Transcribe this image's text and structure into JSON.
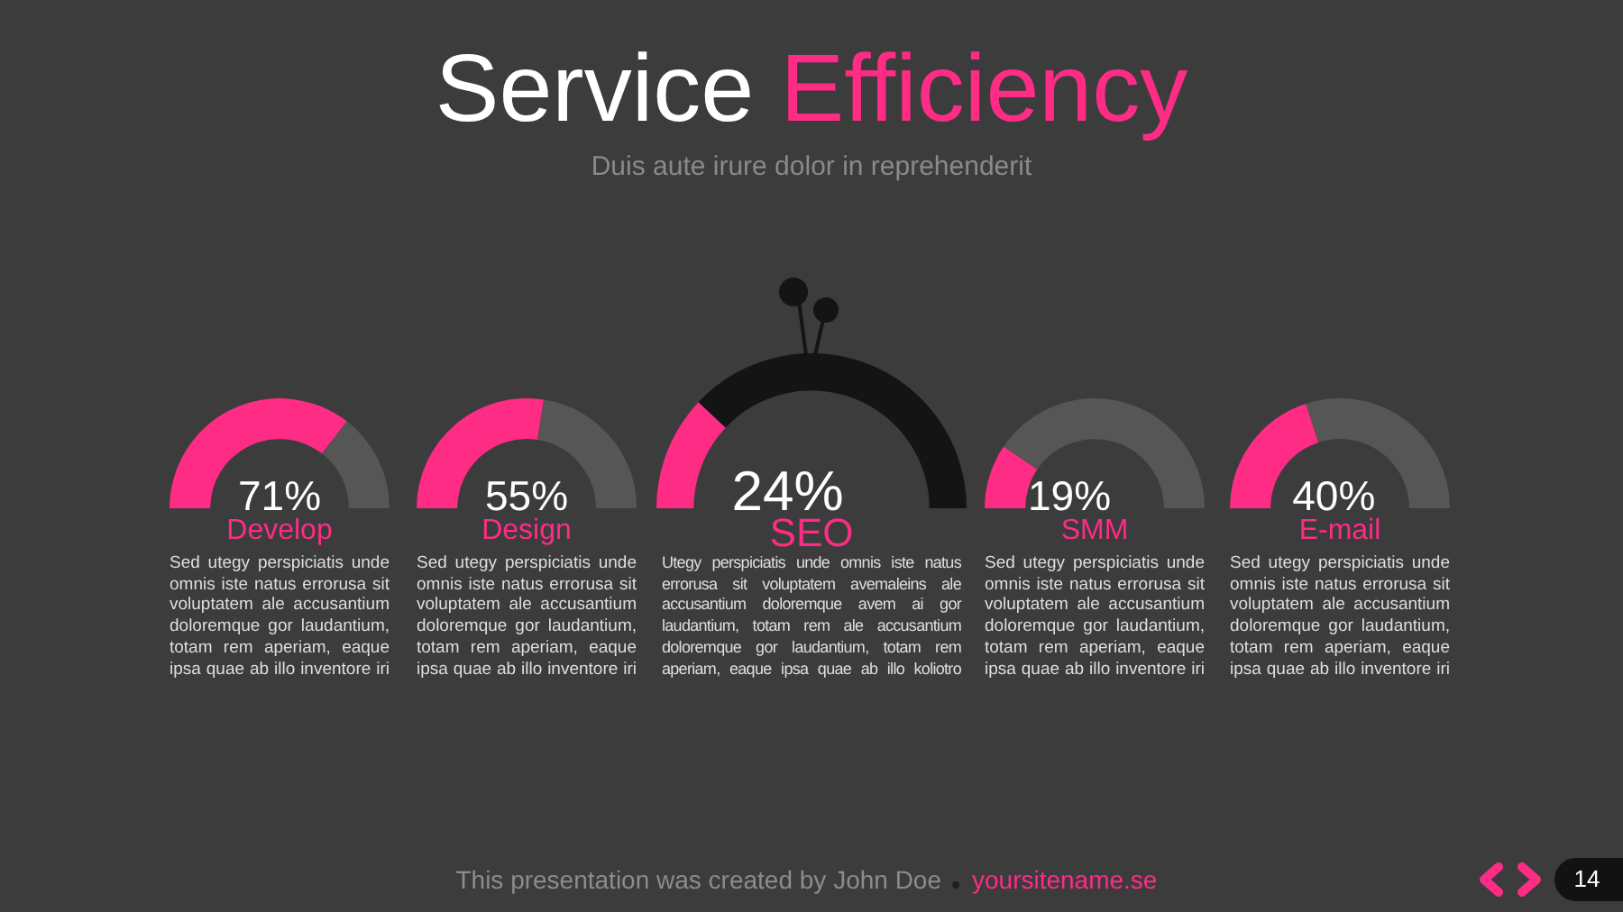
{
  "chart_data": [
    {
      "type": "other",
      "title": "Service Efficiency",
      "subtitle": "Duis aute irure dolor in reprehenderit"
    },
    {
      "type": "donut",
      "title": "Develop",
      "categories": [
        null,
        null
      ],
      "values": [
        71,
        29
      ],
      "colors": [
        "#fe2c85",
        "#565656"
      ],
      "value_labels": [
        "71%",
        null
      ],
      "annotations": [
        "Sed utegy perspiciatis unde omnis iste natus errorusa sit voluptatem ale accusantium doloremque gor laudantium, totam rem aperiam, eaque ipsa quae ab illo inventore iri"
      ]
    },
    {
      "type": "donut",
      "title": "Design",
      "categories": [
        null,
        null
      ],
      "values": [
        55,
        45
      ],
      "colors": [
        "#fe2c85",
        "#565656"
      ],
      "value_labels": [
        "55%",
        null
      ],
      "annotations": [
        "Sed utegy perspiciatis unde omnis iste natus errorusa sit voluptatem ale accusantium doloremque gor laudantium, totam rem aperiam, eaque ipsa quae ab illo inventore iri"
      ]
    },
    {
      "type": "donut",
      "title": "SEO",
      "categories": [
        null,
        null
      ],
      "values": [
        24,
        76
      ],
      "colors": [
        "#fe2c85",
        "#141414"
      ],
      "value_labels": [
        "24%",
        null
      ],
      "annotations": [
        "Utegy perspiciatis unde omnis iste natus errorusa sit voluptatem avemaleins ale accusantium doloremque avem ai gor laudantium, totam rem ale accusantium doloremque gor laudantium, totam rem aperiam, eaque ipsa quae ab illo koliotro"
      ]
    },
    {
      "type": "donut",
      "title": "SMM",
      "categories": [
        null,
        null
      ],
      "values": [
        19,
        81
      ],
      "colors": [
        "#fe2c85",
        "#565656"
      ],
      "value_labels": [
        "19%",
        null
      ],
      "annotations": [
        "Sed utegy perspiciatis unde omnis iste natus errorusa sit voluptatem ale accusantium doloremque gor laudantium, totam rem aperiam, eaque ipsa quae ab illo inventore iri"
      ]
    },
    {
      "type": "donut",
      "title": "E-mail",
      "categories": [
        null,
        null
      ],
      "values": [
        40,
        60
      ],
      "colors": [
        "#fe2c85",
        "#565656"
      ],
      "value_labels": [
        "40%",
        null
      ],
      "annotations": [
        "Sed utegy perspiciatis unde omnis iste natus errorusa sit voluptatem ale accusantium doloremque gor laudantium, totam rem aperiam, eaque ipsa quae ab illo inventore iri"
      ]
    },
    {
      "type": "other",
      "annotations": [
        "This presentation was created by John Doe",
        "yoursitename.se",
        "14"
      ]
    }
  ]
}
